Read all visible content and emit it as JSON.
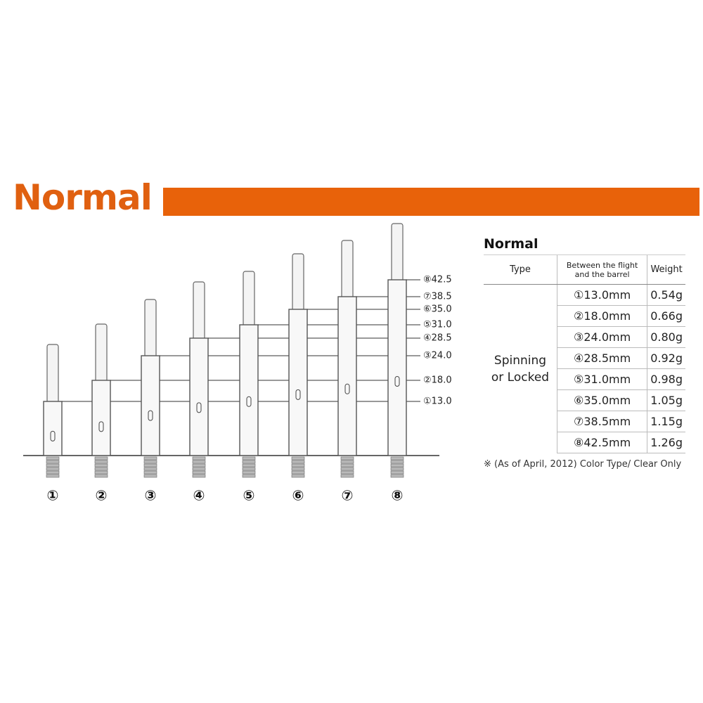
{
  "header": {
    "title": "Normal"
  },
  "figure": {
    "shafts": [
      "①",
      "②",
      "③",
      "④",
      "⑤",
      "⑥",
      "⑦",
      "⑧"
    ],
    "lengths": [
      "⑧42.5",
      "⑦38.5",
      "⑥35.0",
      "⑤31.0",
      "④28.5",
      "③24.0",
      "②18.0",
      "①13.0"
    ]
  },
  "table": {
    "title": "Normal",
    "columns": [
      "Type",
      "Between the flight and the barrel",
      "Weight"
    ],
    "type": "Spinning or Locked",
    "rows": [
      [
        "①13.0mm",
        "0.54g"
      ],
      [
        "②18.0mm",
        "0.66g"
      ],
      [
        "③24.0mm",
        "0.80g"
      ],
      [
        "④28.5mm",
        "0.92g"
      ],
      [
        "⑤31.0mm",
        "0.98g"
      ],
      [
        "⑥35.0mm",
        "1.05g"
      ],
      [
        "⑦38.5mm",
        "1.15g"
      ],
      [
        "⑧42.5mm",
        "1.26g"
      ]
    ]
  },
  "note": "※ (As of April, 2012) Color Type/ Clear Only"
}
